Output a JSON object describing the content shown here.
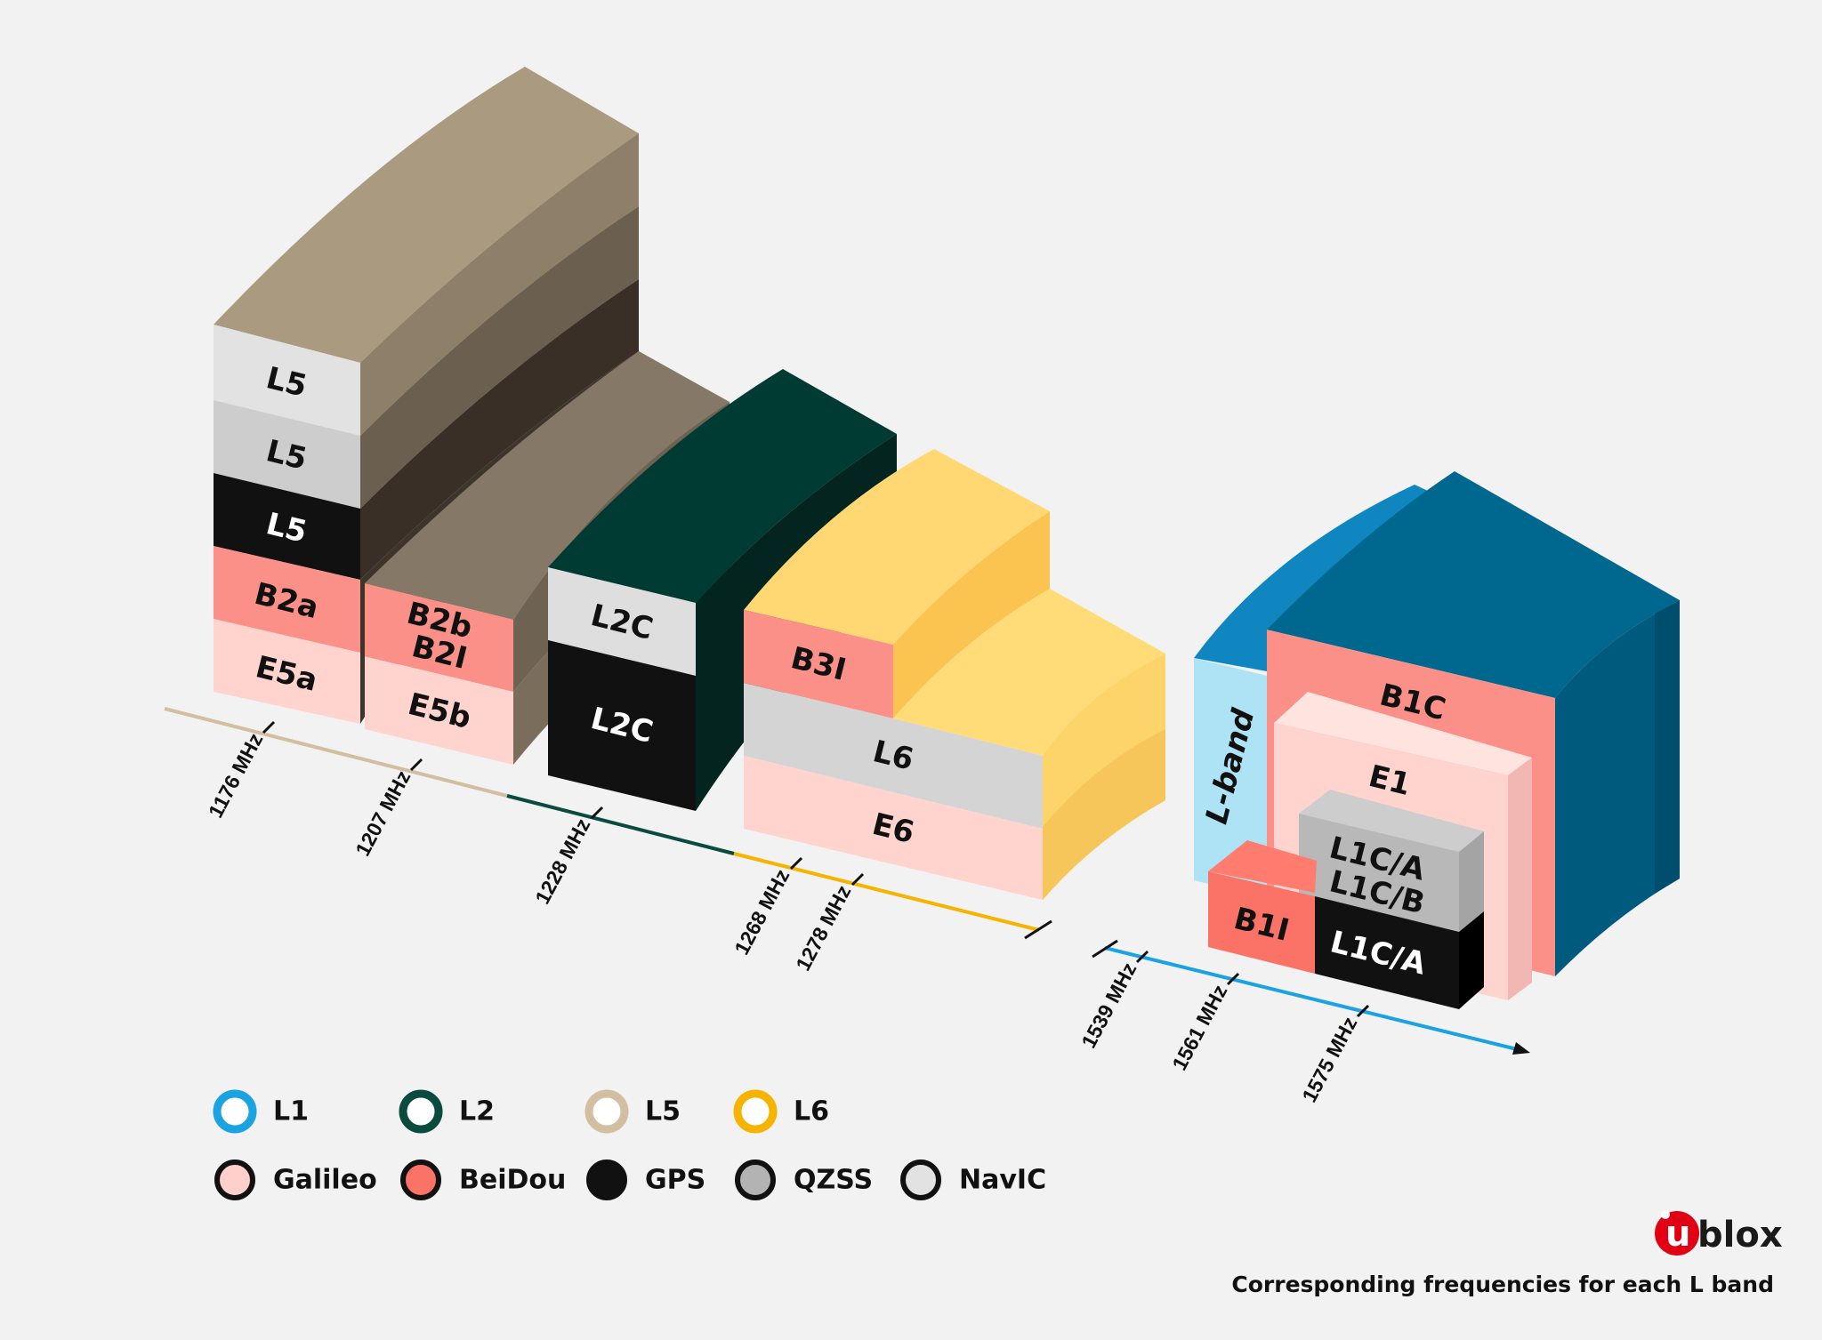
{
  "blocks": {
    "l5_top": "L5",
    "l5_mid": "L5",
    "l5_gps": "L5",
    "b2a": "B2a",
    "e5a": "E5a",
    "b2b": "B2b",
    "b2i": "B2I",
    "e5b": "E5b",
    "l2c_top": "L2C",
    "l2c_bottom": "L2C",
    "b3i": "B3I",
    "l6": "L6",
    "e6": "E6",
    "l_band": "L-band",
    "b1c": "B1C",
    "e1": "E1",
    "l1ca_qzss": "L1C/A",
    "l1cb_qzss": "L1C/B",
    "b1i": "B1I",
    "l1ca_gps": "L1C/A"
  },
  "axis_ticks": {
    "t1176": "1176 MHz",
    "t1207": "1207 MHz",
    "t1228": "1228 MHz",
    "t1268": "1268 MHz",
    "t1278": "1278 MHz",
    "t1539": "1539 MHz",
    "t1561": "1561 MHz",
    "t1575": "1575 MHz"
  },
  "legend": {
    "bands": [
      {
        "label": "L1",
        "color": "#1aa3e0"
      },
      {
        "label": "L2",
        "color": "#0b4a3f"
      },
      {
        "label": "L5",
        "color": "#d2bea0"
      },
      {
        "label": "L6",
        "color": "#f6b300"
      }
    ],
    "systems": [
      {
        "label": "Galileo",
        "color": "#ffcfcb"
      },
      {
        "label": "BeiDou",
        "color": "#fa7366"
      },
      {
        "label": "GPS",
        "color": "#111111"
      },
      {
        "label": "QZSS",
        "color": "#b3b3b3"
      },
      {
        "label": "NavIC",
        "color": "#e2e2e2"
      }
    ]
  },
  "brand": {
    "u": "u",
    "rest": "blox"
  },
  "caption": "Corresponding frequencies for each L band"
}
